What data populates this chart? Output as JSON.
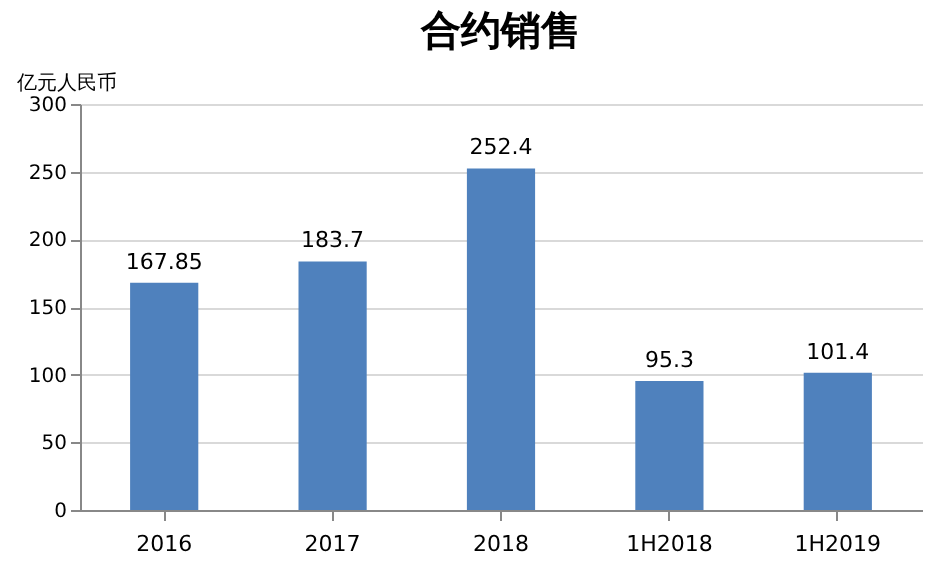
{
  "chart_data": {
    "type": "bar",
    "title": "合约销售",
    "ylabel": "亿元人民币",
    "categories": [
      "2016",
      "2017",
      "2018",
      "1H2018",
      "1H2019"
    ],
    "values": [
      167.85,
      183.7,
      252.4,
      95.3,
      101.4
    ],
    "color": "#4f81bd",
    "ylim": [
      0,
      300
    ],
    "yticks": [
      0,
      50,
      100,
      150,
      200,
      250,
      300
    ],
    "grid": "y",
    "data_labels": true
  }
}
